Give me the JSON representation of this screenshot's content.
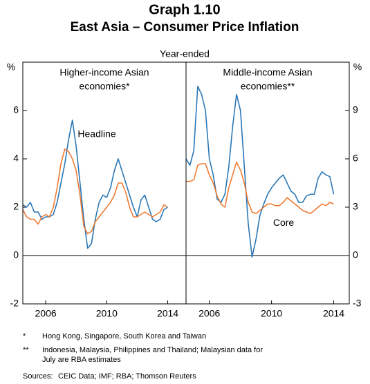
{
  "header": {
    "title": "Graph 1.10",
    "subtitle": "East Asia – Consumer Price Inflation",
    "caption": "Year-ended"
  },
  "chart_data": [
    {
      "type": "line",
      "panel_title": [
        "Higher-income Asian",
        "economies*"
      ],
      "unit": "%",
      "x": [
        2005.0,
        2005.25,
        2005.5,
        2005.75,
        2006.0,
        2006.25,
        2006.5,
        2006.75,
        2007.0,
        2007.25,
        2007.5,
        2007.75,
        2008.0,
        2008.25,
        2008.5,
        2008.75,
        2009.0,
        2009.25,
        2009.5,
        2009.75,
        2010.0,
        2010.25,
        2010.5,
        2010.75,
        2011.0,
        2011.25,
        2011.5,
        2011.75,
        2012.0,
        2012.25,
        2012.5,
        2012.75,
        2013.0,
        2013.25,
        2013.5,
        2013.75,
        2014.0,
        2014.25,
        2014.5
      ],
      "xlim": [
        2005,
        2015.7
      ],
      "xticks": [
        {
          "value": 2006.5,
          "label": "2006"
        },
        {
          "value": 2010.5,
          "label": "2010"
        },
        {
          "value": 2014.5,
          "label": "2014"
        }
      ],
      "ylim": [
        -2,
        8
      ],
      "yticks": [
        -2,
        0,
        2,
        4,
        6
      ],
      "series": [
        {
          "name": "Headline",
          "color": "#2a77b6",
          "values": [
            2.1,
            2.0,
            2.2,
            1.8,
            1.8,
            1.5,
            1.6,
            1.6,
            1.7,
            2.2,
            3.0,
            3.8,
            4.8,
            5.6,
            4.5,
            3.0,
            1.5,
            0.3,
            0.5,
            1.5,
            2.2,
            2.5,
            2.4,
            2.8,
            3.5,
            4.0,
            3.5,
            3.0,
            2.5,
            2.0,
            1.6,
            2.3,
            2.5,
            2.0,
            1.5,
            1.4,
            1.5,
            1.9,
            2.0
          ]
        },
        {
          "name": "Core",
          "color": "#ef7a32",
          "values": [
            1.9,
            1.6,
            1.5,
            1.5,
            1.3,
            1.6,
            1.7,
            1.6,
            2.0,
            2.8,
            3.8,
            4.4,
            4.3,
            4.0,
            3.5,
            2.5,
            1.2,
            0.9,
            1.0,
            1.4,
            1.6,
            1.8,
            2.0,
            2.2,
            2.5,
            3.0,
            3.0,
            2.6,
            2.0,
            1.6,
            1.6,
            1.7,
            1.8,
            1.7,
            1.6,
            1.7,
            1.8,
            2.1,
            2.0
          ]
        }
      ],
      "annotations": [
        {
          "text": "Headline",
          "x": 2008.6,
          "y": 5.0,
          "series": 0
        }
      ]
    },
    {
      "type": "line",
      "panel_title": [
        "Middle-income Asian",
        "economies**"
      ],
      "unit": "%",
      "x": [
        2005.0,
        2005.25,
        2005.5,
        2005.75,
        2006.0,
        2006.25,
        2006.5,
        2006.75,
        2007.0,
        2007.25,
        2007.5,
        2007.75,
        2008.0,
        2008.25,
        2008.5,
        2008.75,
        2009.0,
        2009.25,
        2009.5,
        2009.75,
        2010.0,
        2010.25,
        2010.5,
        2010.75,
        2011.0,
        2011.25,
        2011.5,
        2011.75,
        2012.0,
        2012.25,
        2012.5,
        2012.75,
        2013.0,
        2013.25,
        2013.5,
        2013.75,
        2014.0,
        2014.25,
        2014.5
      ],
      "xlim": [
        2005,
        2015.5
      ],
      "xticks": [
        {
          "value": 2006.5,
          "label": "2006"
        },
        {
          "value": 2010.5,
          "label": "2010"
        },
        {
          "value": 2014.5,
          "label": "2014"
        }
      ],
      "ylim": [
        -3,
        12
      ],
      "yticks": [
        -3,
        0,
        3,
        6,
        9
      ],
      "series": [
        {
          "name": "Headline",
          "color": "#2a77b6",
          "values": [
            6.0,
            5.6,
            6.5,
            10.5,
            10.0,
            9.0,
            6.0,
            5.0,
            3.5,
            3.3,
            3.8,
            5.5,
            8.0,
            10.0,
            9.0,
            5.5,
            2.0,
            -0.1,
            1.0,
            2.5,
            3.2,
            3.8,
            4.2,
            4.5,
            4.8,
            5.0,
            4.5,
            4.0,
            3.8,
            3.3,
            3.3,
            3.7,
            3.8,
            3.8,
            4.8,
            5.2,
            5.0,
            4.9,
            3.8
          ]
        },
        {
          "name": "Core",
          "color": "#ef7a32",
          "values": [
            4.6,
            4.6,
            4.7,
            5.6,
            5.7,
            5.7,
            5.0,
            4.5,
            3.7,
            3.2,
            3.0,
            4.2,
            5.0,
            5.8,
            5.3,
            4.5,
            3.3,
            2.7,
            2.6,
            2.8,
            3.0,
            3.2,
            3.2,
            3.1,
            3.1,
            3.3,
            3.6,
            3.4,
            3.2,
            3.0,
            2.8,
            2.7,
            2.6,
            2.8,
            3.0,
            3.2,
            3.1,
            3.3,
            3.2
          ]
        }
      ],
      "annotations": [
        {
          "text": "Core",
          "x": 2010.6,
          "y": 2.0,
          "series": 1
        }
      ]
    }
  ],
  "notes": {
    "footnotes": [
      {
        "mark": "*",
        "lines": [
          "Hong Kong, Singapore, South Korea and Taiwan"
        ]
      },
      {
        "mark": "**",
        "lines": [
          "Indonesia, Malaysia, Philippines and Thailand; Malaysian data for",
          "July are RBA estimates"
        ]
      }
    ],
    "sources_label": "Sources:",
    "sources": "CEIC Data; IMF; RBA; Thomson Reuters"
  }
}
